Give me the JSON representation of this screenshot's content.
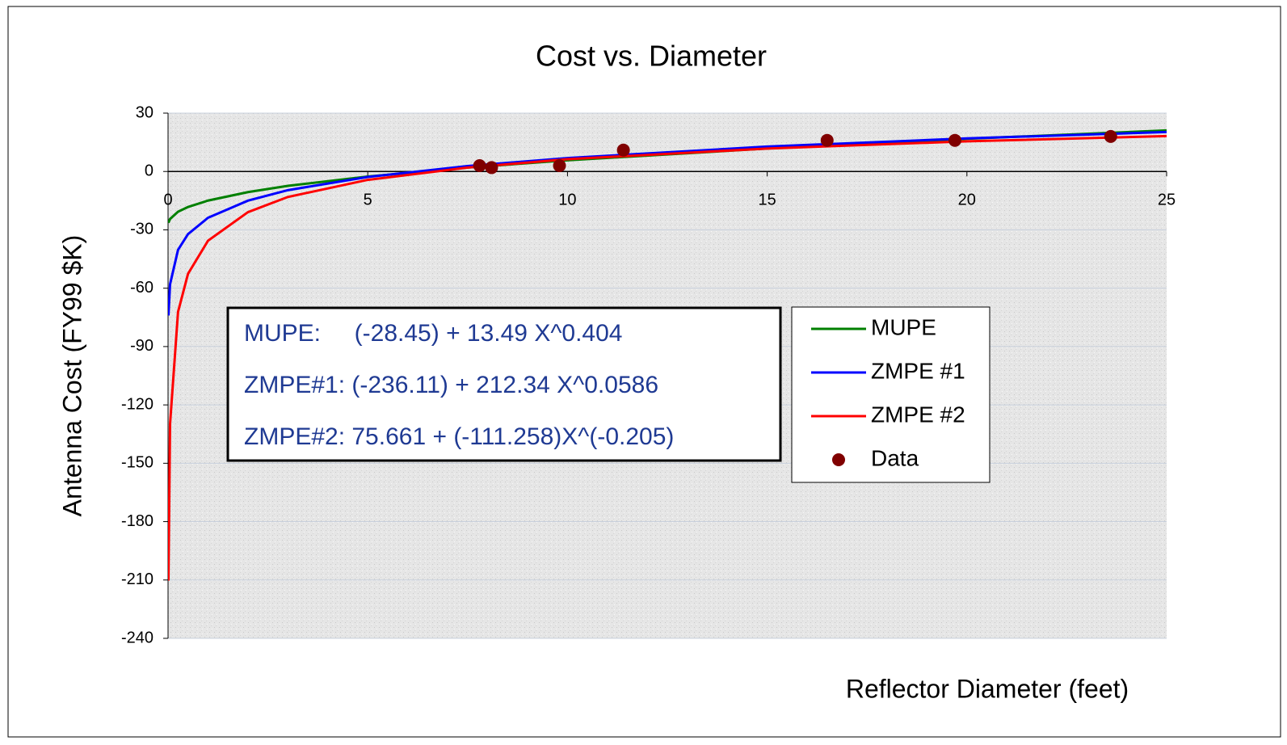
{
  "chart_data": {
    "type": "line",
    "title": "Cost vs. Diameter",
    "x_label": "Reflector Diameter (feet)",
    "y_label": "Antenna Cost (FY99 $K)",
    "x": [
      0.01,
      0.05,
      0.25,
      0.5,
      1,
      2,
      3,
      5,
      7.5,
      10,
      15,
      20,
      25
    ],
    "series": [
      {
        "name": "MUPE",
        "color": "#008000",
        "values": [
          -26.35,
          -24.4,
          -20.7,
          -18.25,
          -14.96,
          -10.6,
          -7.4,
          -2.6,
          2.0,
          5.75,
          11.8,
          16.8,
          21.1
        ]
      },
      {
        "name": "ZMPE #1",
        "color": "#0000ff",
        "values": [
          -74,
          -58.0,
          -40.3,
          -32.2,
          -23.8,
          -15.0,
          -9.6,
          -2.8,
          2.8,
          6.9,
          12.8,
          17.0,
          20.3
        ]
      },
      {
        "name": "ZMPE #2",
        "color": "#ff0000",
        "values": [
          -210.3,
          -129.9,
          -72.2,
          -52.6,
          -35.6,
          -20.9,
          -13.1,
          -4.3,
          2.0,
          6.3,
          11.8,
          15.5,
          18.2
        ]
      },
      {
        "name": "Data",
        "color": "#800000",
        "type": "scatter",
        "x": [
          7.8,
          8.1,
          9.8,
          11.4,
          16.5,
          19.7,
          23.6
        ],
        "values": [
          3,
          2,
          3,
          11,
          16,
          16,
          18
        ]
      }
    ],
    "annotations": [
      "MUPE:     (-28.45) + 13.49 X^0.404",
      "ZMPE#1: (-236.11) + 212.34 X^0.0586",
      "ZMPE#2: 75.661 + (-111.258)X^(-0.205)"
    ],
    "xlim": [
      0,
      25
    ],
    "xticks": [
      0,
      5,
      10,
      15,
      20,
      25
    ],
    "ylim": [
      -240,
      30
    ],
    "yticks": [
      -240,
      -210,
      -180,
      -150,
      -120,
      -90,
      -60,
      -30,
      0,
      30
    ],
    "grid": true,
    "legend": "right"
  }
}
